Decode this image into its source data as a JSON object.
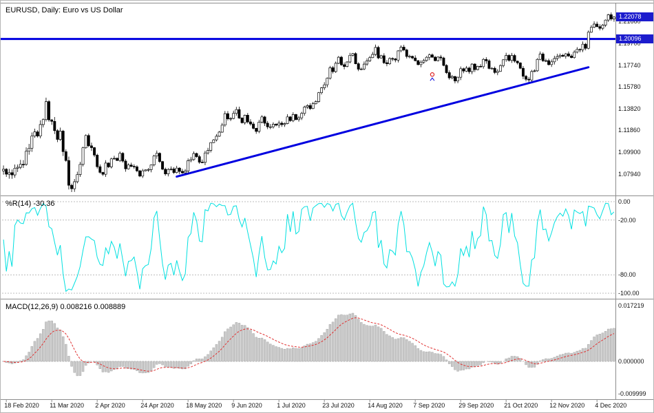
{
  "window": {
    "title": "EURUSD, Daily: Euro vs US Dollar"
  },
  "colors": {
    "background": "#ffffff",
    "frame": "#8c8c8c",
    "badge_bg": "#1c1ccd",
    "line_blue": "#0000e0",
    "candle": "#000000",
    "wpr_cyan": "#00e0e0",
    "macd_hist": "#c9c9c9",
    "macd_signal": "#e03030"
  },
  "chart_data": {
    "type": "candlestick",
    "symbol": "EURUSD",
    "timeframe": "Daily",
    "description": "Euro vs US Dollar",
    "title": "EURUSD, Daily: Euro vs US Dollar",
    "price_badge_current": "1.22078",
    "price_axis_labels": [
      "1.21660",
      "1.19700",
      "1.17740",
      "1.15780",
      "1.13820",
      "1.11860",
      "1.09900",
      "1.07940"
    ],
    "price_range": {
      "min": 1.06,
      "max": 1.233
    },
    "horizontal_line": {
      "price": 1.20096,
      "label": "1.20096",
      "color": "#0000e0"
    },
    "trendline": {
      "from_bar": 61,
      "from_price": 1.077,
      "to_bar": 206,
      "to_price": 1.1755,
      "color": "#0000e0"
    },
    "trade_marker": {
      "bar": 151,
      "price": 1.169,
      "circle_color": "#dd2020",
      "arrow_color": "#2020dd"
    },
    "x_labels": [
      "18 Feb 2020",
      "11 Mar 2020",
      "2 Apr 2020",
      "24 Apr 2020",
      "18 May 2020",
      "9 Jun 2020",
      "1 Jul 2020",
      "23 Jul 2020",
      "14 Aug 2020",
      "7 Sep 2020",
      "29 Sep 2020",
      "21 Oct 2020",
      "12 Nov 2020",
      "4 Dec 2020"
    ],
    "x_first_bar_index": 1,
    "x_label_step": 16,
    "candles": {
      "note_unit": "daily closes, left bar = 17 Feb 2020",
      "closes": [
        1.0836,
        1.0792,
        1.0806,
        1.0785,
        1.0846,
        1.0854,
        1.0881,
        1.088,
        1.0999,
        1.1026,
        1.1135,
        1.1173,
        1.1135,
        1.1239,
        1.1284,
        1.1446,
        1.1281,
        1.1268,
        1.1184,
        1.1105,
        1.118,
        1.0995,
        1.0915,
        1.0692,
        1.0661,
        1.0724,
        1.0788,
        1.088,
        1.103,
        1.1141,
        1.1048,
        1.1031,
        1.0964,
        1.0859,
        1.0808,
        1.0791,
        1.0892,
        1.0858,
        1.093,
        1.0935,
        1.0915,
        1.098,
        1.091,
        1.084,
        1.0875,
        1.0863,
        1.0858,
        1.0822,
        1.0775,
        1.0822,
        1.083,
        1.0833,
        1.0875,
        1.0955,
        1.098,
        1.0906,
        1.0837,
        1.0795,
        1.0834,
        1.0839,
        1.0807,
        1.0847,
        1.0817,
        1.0804,
        1.082,
        1.0914,
        1.0924,
        1.0978,
        1.095,
        1.09,
        1.0898,
        1.0983,
        1.1006,
        1.1076,
        1.1101,
        1.1134,
        1.1171,
        1.1234,
        1.1337,
        1.129,
        1.1294,
        1.134,
        1.1374,
        1.1298,
        1.1255,
        1.1323,
        1.1263,
        1.1244,
        1.1205,
        1.1177,
        1.1261,
        1.1308,
        1.1251,
        1.1218,
        1.1219,
        1.1242,
        1.1234,
        1.1252,
        1.1239,
        1.1248,
        1.1308,
        1.1274,
        1.1329,
        1.1283,
        1.13,
        1.134,
        1.1397,
        1.141,
        1.1383,
        1.1427,
        1.1446,
        1.1526,
        1.157,
        1.1597,
        1.1656,
        1.1751,
        1.1716,
        1.1791,
        1.1846,
        1.1778,
        1.1762,
        1.1803,
        1.1863,
        1.1878,
        1.1787,
        1.1738,
        1.174,
        1.1784,
        1.1813,
        1.1842,
        1.1871,
        1.1934,
        1.1839,
        1.1859,
        1.1796,
        1.1786,
        1.1834,
        1.183,
        1.182,
        1.1903,
        1.1936,
        1.1911,
        1.1853,
        1.1853,
        1.1839,
        1.1815,
        1.1779,
        1.1801,
        1.1816,
        1.1845,
        1.1867,
        1.1846,
        1.1815,
        1.1847,
        1.1839,
        1.1772,
        1.1707,
        1.166,
        1.1672,
        1.1631,
        1.1665,
        1.1742,
        1.1721,
        1.1748,
        1.1716,
        1.1784,
        1.1734,
        1.1763,
        1.1761,
        1.1826,
        1.1813,
        1.1745,
        1.1746,
        1.1708,
        1.1718,
        1.177,
        1.1823,
        1.1862,
        1.1817,
        1.1861,
        1.181,
        1.1795,
        1.1746,
        1.1674,
        1.1647,
        1.1641,
        1.1717,
        1.1723,
        1.1826,
        1.1874,
        1.1813,
        1.1815,
        1.1779,
        1.1804,
        1.1834,
        1.1852,
        1.1863,
        1.1854,
        1.1876,
        1.1857,
        1.1842,
        1.1891,
        1.1916,
        1.1913,
        1.1963,
        1.1926,
        1.2071,
        1.2115,
        1.2144,
        1.2121,
        1.2106,
        1.2135,
        1.218,
        1.2228,
        1.219,
        1.22078
      ]
    },
    "indicators": [
      {
        "name": "Williams %R",
        "params": "14",
        "label": "%R(14) -30.36",
        "current_value": "-30.36",
        "range": [
          0,
          -100
        ],
        "levels": [
          0,
          -20,
          -80,
          -100
        ],
        "axis_labels": [
          "0.00",
          "-20.00",
          "-80.00",
          "-100.00"
        ],
        "color": "#00e0e0"
      },
      {
        "name": "MACD",
        "params": "12,26,9",
        "label": "MACD(12,26,9) 0.008216 0.008889",
        "current_values": [
          "0.008216",
          "0.008889"
        ],
        "range": [
          -0.009999,
          0.017219
        ],
        "axis_labels": [
          "0.017219",
          "0.000000",
          "-0.009999"
        ],
        "histogram_color": "#c9c9c9",
        "histogram_stroke": "#a8a8a8",
        "signal_color": "#e03030"
      }
    ]
  }
}
